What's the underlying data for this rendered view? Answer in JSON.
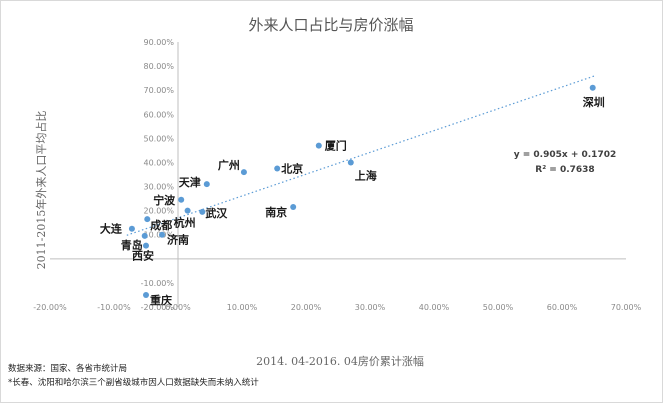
{
  "chart_data": {
    "type": "scatter",
    "title": "外来人口占比与房价涨幅",
    "xlabel": "2014. 04-2016. 04房价累计涨幅",
    "ylabel": "2011-2015年外来人口平均占比",
    "xlim": [
      -20,
      70
    ],
    "ylim": [
      -20,
      90
    ],
    "x_ticks": [
      "-20.00%",
      "-10.00%",
      "0.00%",
      "10.00%",
      "20.00%",
      "30.00%",
      "40.00%",
      "50.00%",
      "60.00%",
      "70.00%"
    ],
    "y_ticks": [
      "-20.00%",
      "-10.00%",
      "0.00%",
      "10.00%",
      "20.00%",
      "30.00%",
      "40.00%",
      "50.00%",
      "60.00%",
      "70.00%",
      "80.00%",
      "90.00%"
    ],
    "grid": false,
    "trendline": {
      "slope": 0.905,
      "intercept": 0.1702,
      "equation": "y = 0.905x + 0.1702",
      "r2": "R² = 0.7638",
      "style": "dotted"
    },
    "points": [
      {
        "name": "深圳",
        "x": 64.8,
        "y": 71.0
      },
      {
        "name": "厦门",
        "x": 22.0,
        "y": 47.0
      },
      {
        "name": "上海",
        "x": 27.0,
        "y": 40.0
      },
      {
        "name": "北京",
        "x": 15.5,
        "y": 37.5
      },
      {
        "name": "广州",
        "x": 10.3,
        "y": 36.0
      },
      {
        "name": "天津",
        "x": 4.5,
        "y": 31.0
      },
      {
        "name": "南京",
        "x": 18.0,
        "y": 21.5
      },
      {
        "name": "宁波",
        "x": 0.5,
        "y": 24.5
      },
      {
        "name": "杭州",
        "x": 1.5,
        "y": 20.0
      },
      {
        "name": "武汉",
        "x": 3.8,
        "y": 19.5
      },
      {
        "name": "成都",
        "x": -4.8,
        "y": 16.5
      },
      {
        "name": "大连",
        "x": -7.2,
        "y": 12.5
      },
      {
        "name": "济南",
        "x": -2.5,
        "y": 10.0
      },
      {
        "name": "青岛",
        "x": -5.2,
        "y": 9.5
      },
      {
        "name": "西安",
        "x": -5.0,
        "y": 5.5
      },
      {
        "name": "重庆",
        "x": -5.0,
        "y": -15.0
      }
    ],
    "colors": {
      "point": "#5b9bd5",
      "trendline": "#5b9bd5",
      "axis": "#bfbfbf"
    }
  },
  "notes": [
    "数据来源：国家、各省市统计局",
    "*长春、沈阳和哈尔滨三个副省级城市因人口数据缺失而未纳入统计"
  ]
}
